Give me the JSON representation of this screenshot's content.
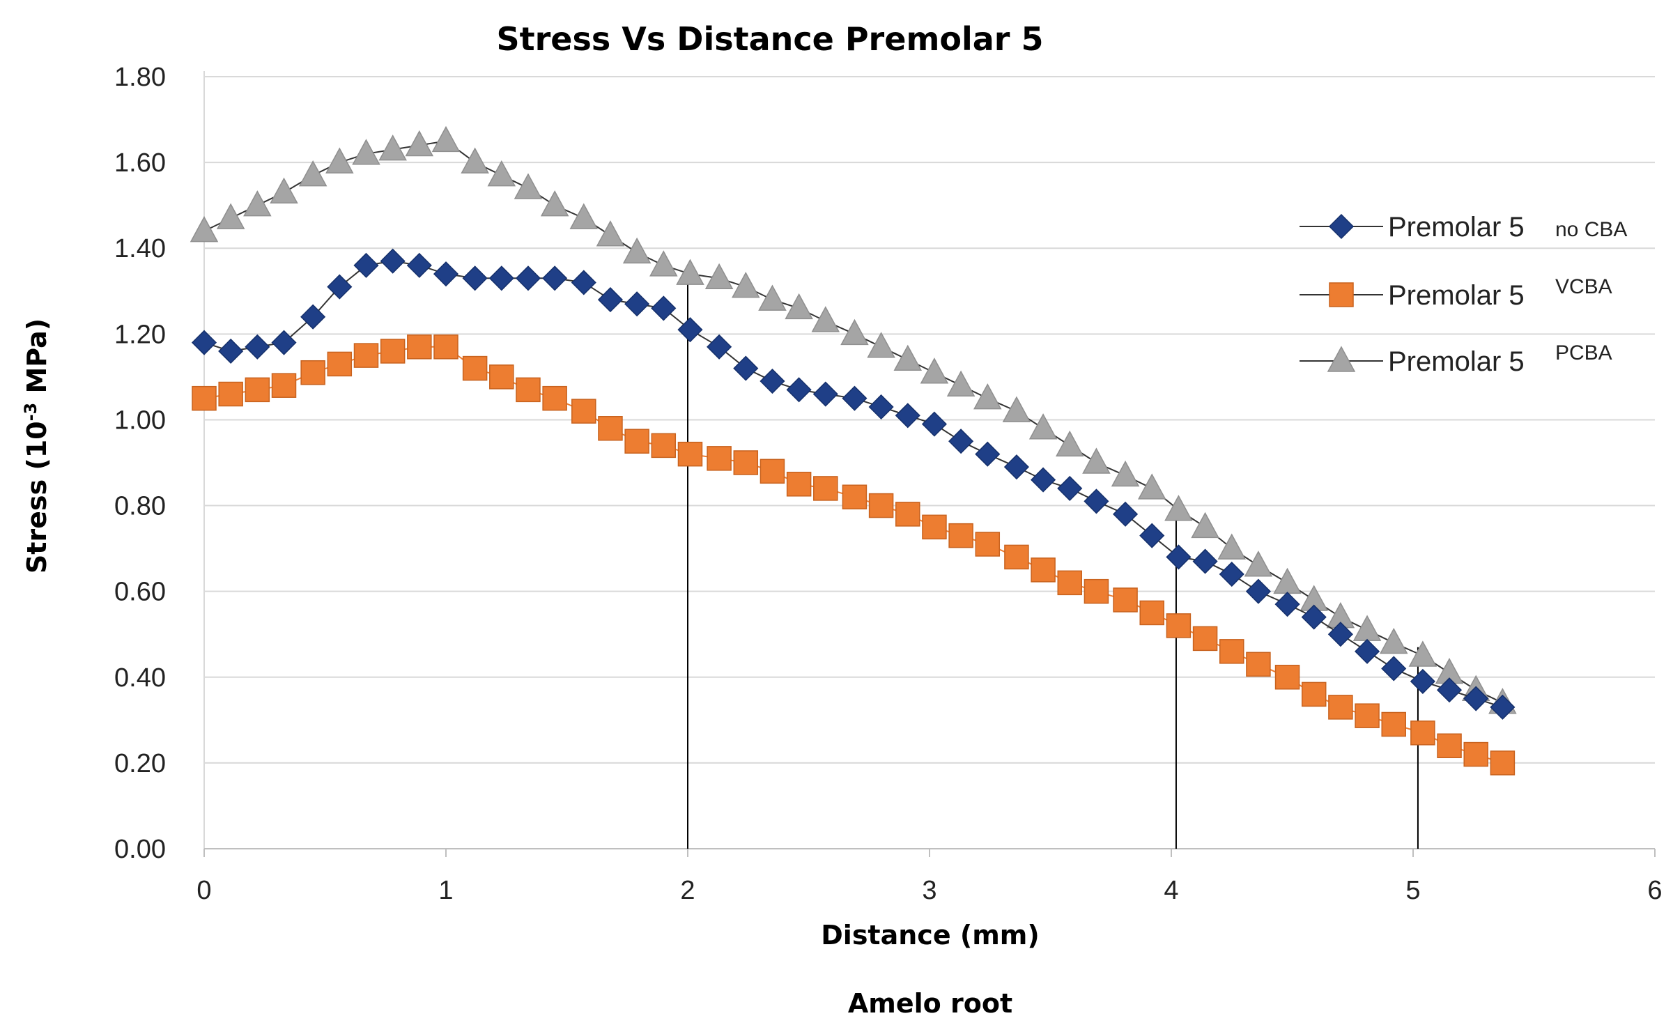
{
  "chart_data": {
    "type": "line",
    "title": "Stress Vs Distance  Premolar 5",
    "xlabel": "Distance (mm)",
    "ylabel_main": "Stress (10",
    "ylabel_exp": "-3",
    "ylabel_unit": " MPa)",
    "footer": "Amelo root",
    "xlim": [
      0,
      6
    ],
    "ylim": [
      0,
      1.8
    ],
    "x_ticks": [
      "0",
      "1",
      "2",
      "3",
      "4",
      "5",
      "6"
    ],
    "y_ticks": [
      "0.00",
      "0.20",
      "0.40",
      "0.60",
      "0.80",
      "1.00",
      "1.20",
      "1.40",
      "1.60",
      "1.80"
    ],
    "grid": true,
    "legend_position": "right",
    "markers_x_at": [
      2.0,
      4.02,
      5.02
    ],
    "x": [
      0.0,
      0.11,
      0.22,
      0.33,
      0.45,
      0.56,
      0.67,
      0.78,
      0.89,
      1.0,
      1.12,
      1.23,
      1.34,
      1.45,
      1.57,
      1.68,
      1.79,
      1.9,
      2.01,
      2.13,
      2.24,
      2.35,
      2.46,
      2.57,
      2.69,
      2.8,
      2.91,
      3.02,
      3.13,
      3.24,
      3.36,
      3.47,
      3.58,
      3.69,
      3.81,
      3.92,
      4.03,
      4.14,
      4.25,
      4.36,
      4.48,
      4.59,
      4.7,
      4.81,
      4.92,
      5.04,
      5.15,
      5.26,
      5.37
    ],
    "series": [
      {
        "name": "Premolar 5",
        "sub": "no CBA",
        "marker": "diamond",
        "color": "#1F3F87",
        "values": [
          1.18,
          1.16,
          1.17,
          1.18,
          1.24,
          1.31,
          1.36,
          1.37,
          1.36,
          1.34,
          1.33,
          1.33,
          1.33,
          1.33,
          1.32,
          1.28,
          1.27,
          1.26,
          1.21,
          1.17,
          1.12,
          1.09,
          1.07,
          1.06,
          1.05,
          1.03,
          1.01,
          0.99,
          0.95,
          0.92,
          0.89,
          0.86,
          0.84,
          0.81,
          0.78,
          0.73,
          0.68,
          0.67,
          0.64,
          0.6,
          0.57,
          0.54,
          0.5,
          0.46,
          0.42,
          0.39,
          0.37,
          0.35,
          0.33
        ]
      },
      {
        "name": "Premolar 5",
        "sub": "VCBA",
        "marker": "square",
        "color": "#ED7D31",
        "values": [
          1.05,
          1.06,
          1.07,
          1.08,
          1.11,
          1.13,
          1.15,
          1.16,
          1.17,
          1.17,
          1.12,
          1.1,
          1.07,
          1.05,
          1.02,
          0.98,
          0.95,
          0.94,
          0.92,
          0.91,
          0.9,
          0.88,
          0.85,
          0.84,
          0.82,
          0.8,
          0.78,
          0.75,
          0.73,
          0.71,
          0.68,
          0.65,
          0.62,
          0.6,
          0.58,
          0.55,
          0.52,
          0.49,
          0.46,
          0.43,
          0.4,
          0.36,
          0.33,
          0.31,
          0.29,
          0.27,
          0.24,
          0.22,
          0.2
        ]
      },
      {
        "name": "Premolar 5",
        "sub": "PCBA",
        "marker": "triangle",
        "color": "#A5A5A5",
        "values": [
          1.44,
          1.47,
          1.5,
          1.53,
          1.57,
          1.6,
          1.62,
          1.63,
          1.64,
          1.65,
          1.6,
          1.57,
          1.54,
          1.5,
          1.47,
          1.43,
          1.39,
          1.36,
          1.34,
          1.33,
          1.31,
          1.28,
          1.26,
          1.23,
          1.2,
          1.17,
          1.14,
          1.11,
          1.08,
          1.05,
          1.02,
          0.98,
          0.94,
          0.9,
          0.87,
          0.84,
          0.79,
          0.75,
          0.7,
          0.66,
          0.62,
          0.58,
          0.54,
          0.51,
          0.48,
          0.45,
          0.41,
          0.37,
          0.34
        ]
      }
    ]
  }
}
